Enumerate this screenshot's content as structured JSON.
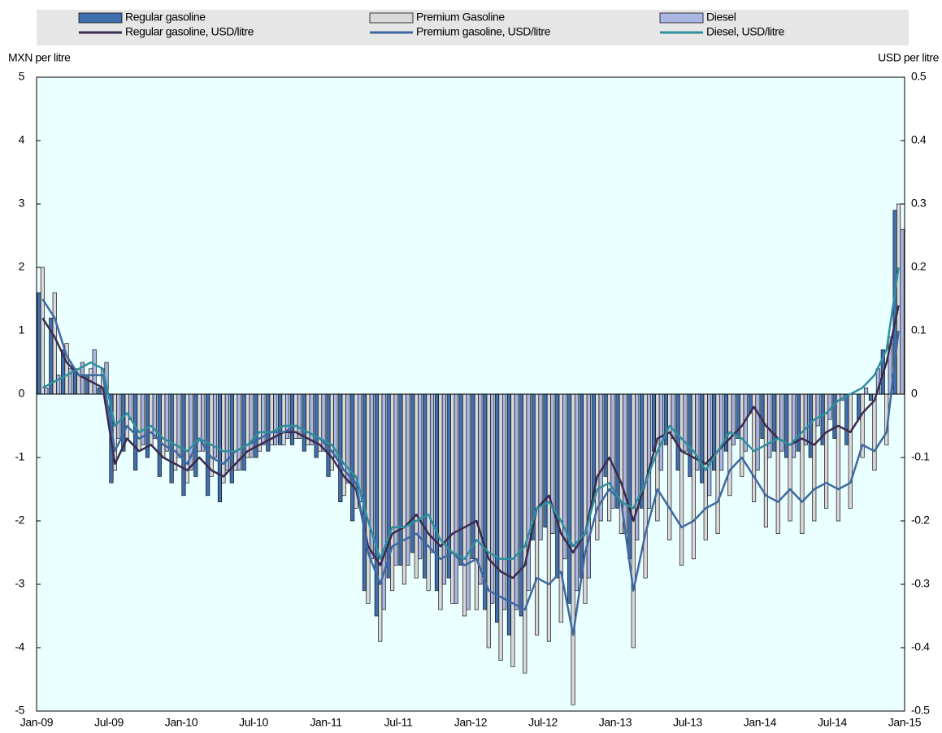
{
  "chart_data": {
    "type": "bar",
    "y_axis_label": "MXN per litre",
    "y2_axis_label": "USD per litre",
    "categories": [
      "Jan-09",
      null,
      null,
      null,
      null,
      null,
      "Jul-09",
      null,
      null,
      null,
      null,
      null,
      "Jan-10",
      null,
      null,
      null,
      null,
      null,
      "Jul-10",
      null,
      null,
      null,
      null,
      null,
      "Jan-11",
      null,
      null,
      null,
      null,
      null,
      "Jul-11",
      null,
      null,
      null,
      null,
      null,
      "Jan-12",
      null,
      null,
      null,
      null,
      null,
      "Jul-12",
      null,
      null,
      null,
      null,
      null,
      "Jan-13",
      null,
      null,
      null,
      null,
      null,
      "Jul-13",
      null,
      null,
      null,
      null,
      null,
      "Jan-14",
      null,
      null,
      null,
      null,
      null,
      "Jul-14",
      null,
      null,
      null,
      null,
      null
    ],
    "x_end_label": "Jan-15",
    "ylim": [
      -5,
      5
    ],
    "yticks": [
      -5,
      -4,
      -3,
      -2,
      -1,
      0,
      1,
      2,
      3,
      4,
      5
    ],
    "y2lim": [
      -0.5,
      0.5
    ],
    "y2ticks": [
      -0.5,
      -0.4,
      -0.3,
      -0.2,
      -0.1,
      0,
      0.1,
      0.2,
      0.3,
      0.4,
      0.5
    ],
    "series": [
      {
        "name": "Regular gasoline",
        "type": "bar",
        "color": "#3f6fae",
        "values": [
          1.6,
          1.2,
          0.7,
          0.4,
          0.3,
          0.1,
          -1.4,
          -0.9,
          -1.2,
          -1.0,
          -1.3,
          -1.4,
          -1.6,
          -1.3,
          -1.6,
          -1.7,
          -1.4,
          -1.2,
          -1.0,
          -0.9,
          -0.8,
          -0.8,
          -0.9,
          -1.0,
          -1.3,
          -1.7,
          -2.0,
          -3.1,
          -3.5,
          -2.9,
          -2.7,
          -2.5,
          -2.9,
          -3.1,
          -2.9,
          -2.7,
          -2.6,
          -3.4,
          -3.6,
          -3.8,
          -3.5,
          -2.3,
          -2.1,
          -2.9,
          -3.3,
          -2.9,
          -1.7,
          -1.3,
          -1.8,
          -2.6,
          -1.8,
          -0.9,
          -0.8,
          -1.2,
          -1.3,
          -1.4,
          -1.2,
          -0.9,
          -0.7,
          -0.3,
          -0.7,
          -0.9,
          -1.0,
          -0.9,
          -1.0,
          -0.8,
          -0.7,
          -0.8,
          -0.4,
          -0.1,
          0.7,
          2.9
        ]
      },
      {
        "name": "Premium Gasoline",
        "type": "bar",
        "color": "#d9d9d9",
        "values": [
          2.0,
          1.6,
          0.8,
          0.4,
          0.4,
          0.4,
          -1.2,
          -0.7,
          -0.9,
          -0.8,
          -1.0,
          -1.2,
          -1.4,
          -0.9,
          -1.3,
          -1.4,
          -1.2,
          -1.0,
          -0.9,
          -0.8,
          -0.8,
          -0.7,
          -0.8,
          -0.9,
          -1.2,
          -1.6,
          -1.8,
          -3.3,
          -3.9,
          -3.1,
          -3.0,
          -2.9,
          -3.1,
          -3.4,
          -3.3,
          -3.5,
          -3.4,
          -4.0,
          -4.2,
          -4.3,
          -4.4,
          -3.8,
          -3.9,
          -3.6,
          -4.9,
          -3.3,
          -2.3,
          -2.0,
          -2.2,
          -4.0,
          -2.9,
          -2.0,
          -2.3,
          -2.7,
          -2.6,
          -2.3,
          -2.2,
          -1.6,
          -1.3,
          -1.7,
          -2.1,
          -2.2,
          -2.0,
          -2.2,
          -2.0,
          -1.8,
          -2.0,
          -1.8,
          -1.0,
          -1.2,
          -0.8,
          3.0
        ]
      },
      {
        "name": "Diesel",
        "type": "bar",
        "color": "#aab7e2",
        "values": [
          0.1,
          0.3,
          0.4,
          0.5,
          0.7,
          0.5,
          -0.7,
          -0.4,
          -0.8,
          -0.7,
          -0.9,
          -1.0,
          -1.2,
          -0.9,
          -1.0,
          -1.2,
          -1.2,
          -1.0,
          -0.8,
          -0.8,
          -0.7,
          -0.7,
          -0.8,
          -0.9,
          -1.0,
          -1.4,
          -1.7,
          -2.6,
          -3.4,
          -2.7,
          -2.7,
          -2.6,
          -2.5,
          -3.0,
          -3.3,
          -3.4,
          -3.0,
          -3.3,
          -3.4,
          -3.4,
          -3.1,
          -2.3,
          -2.2,
          -2.6,
          -3.1,
          -2.9,
          -2.0,
          -1.8,
          -2.2,
          -2.3,
          -1.8,
          -1.2,
          -0.7,
          -0.9,
          -1.2,
          -1.6,
          -1.2,
          -0.8,
          -0.9,
          -1.2,
          -1.0,
          -0.9,
          -1.0,
          -0.8,
          -0.5,
          -0.4,
          -0.1,
          0.0,
          0.1,
          0.4,
          0.9,
          2.6
        ]
      },
      {
        "name": "Regular gasoline, USD/litre",
        "type": "line",
        "axis": "y2",
        "color": "#3b2a4f",
        "values": [
          0.12,
          0.09,
          0.05,
          0.03,
          0.02,
          0.01,
          -0.11,
          -0.07,
          -0.09,
          -0.08,
          -0.1,
          -0.11,
          -0.12,
          -0.1,
          -0.12,
          -0.13,
          -0.11,
          -0.09,
          -0.08,
          -0.07,
          -0.06,
          -0.06,
          -0.07,
          -0.08,
          -0.1,
          -0.13,
          -0.15,
          -0.24,
          -0.27,
          -0.22,
          -0.21,
          -0.19,
          -0.22,
          -0.24,
          -0.22,
          -0.21,
          -0.2,
          -0.26,
          -0.28,
          -0.29,
          -0.27,
          -0.18,
          -0.16,
          -0.22,
          -0.25,
          -0.22,
          -0.13,
          -0.1,
          -0.14,
          -0.2,
          -0.14,
          -0.07,
          -0.06,
          -0.09,
          -0.1,
          -0.11,
          -0.09,
          -0.07,
          -0.05,
          -0.02,
          -0.05,
          -0.07,
          -0.08,
          -0.07,
          -0.08,
          -0.06,
          -0.05,
          -0.06,
          -0.03,
          -0.01,
          0.05,
          0.14
        ]
      },
      {
        "name": "Premium gasoline, USD/litre",
        "type": "line",
        "axis": "y2",
        "color": "#3e68a0",
        "values": [
          0.15,
          0.12,
          0.06,
          0.03,
          0.03,
          0.03,
          -0.09,
          -0.05,
          -0.07,
          -0.06,
          -0.08,
          -0.09,
          -0.11,
          -0.07,
          -0.1,
          -0.11,
          -0.09,
          -0.08,
          -0.07,
          -0.06,
          -0.06,
          -0.05,
          -0.06,
          -0.07,
          -0.09,
          -0.12,
          -0.14,
          -0.25,
          -0.3,
          -0.24,
          -0.23,
          -0.22,
          -0.24,
          -0.26,
          -0.25,
          -0.27,
          -0.26,
          -0.31,
          -0.32,
          -0.33,
          -0.34,
          -0.29,
          -0.3,
          -0.28,
          -0.38,
          -0.25,
          -0.18,
          -0.15,
          -0.17,
          -0.31,
          -0.22,
          -0.15,
          -0.18,
          -0.21,
          -0.2,
          -0.18,
          -0.17,
          -0.12,
          -0.1,
          -0.13,
          -0.16,
          -0.17,
          -0.15,
          -0.17,
          -0.15,
          -0.14,
          -0.15,
          -0.14,
          -0.08,
          -0.09,
          -0.06,
          0.1
        ]
      },
      {
        "name": "Diesel, USD/litre",
        "type": "line",
        "axis": "y2",
        "color": "#2e8f9e",
        "values": [
          0.01,
          0.02,
          0.03,
          0.04,
          0.05,
          0.04,
          -0.05,
          -0.03,
          -0.06,
          -0.05,
          -0.07,
          -0.08,
          -0.09,
          -0.07,
          -0.08,
          -0.09,
          -0.09,
          -0.08,
          -0.06,
          -0.06,
          -0.05,
          -0.05,
          -0.06,
          -0.07,
          -0.08,
          -0.11,
          -0.13,
          -0.2,
          -0.26,
          -0.21,
          -0.21,
          -0.2,
          -0.19,
          -0.23,
          -0.25,
          -0.26,
          -0.23,
          -0.25,
          -0.26,
          -0.26,
          -0.24,
          -0.18,
          -0.17,
          -0.2,
          -0.24,
          -0.22,
          -0.15,
          -0.14,
          -0.17,
          -0.18,
          -0.14,
          -0.09,
          -0.05,
          -0.07,
          -0.09,
          -0.12,
          -0.09,
          -0.06,
          -0.07,
          -0.09,
          -0.08,
          -0.07,
          -0.08,
          -0.06,
          -0.04,
          -0.03,
          -0.01,
          0.0,
          0.01,
          0.03,
          0.07,
          0.2
        ]
      }
    ]
  }
}
